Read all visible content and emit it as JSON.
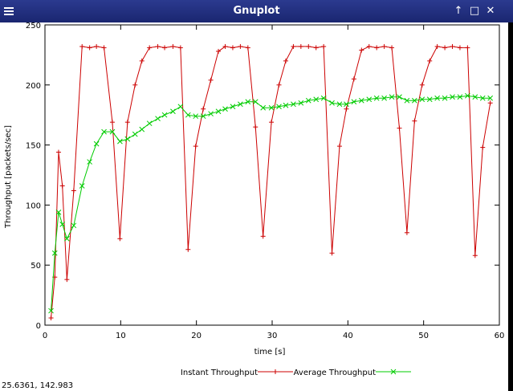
{
  "window": {
    "title": "Gnuplot",
    "controls": [
      "↑",
      "□",
      "✕"
    ]
  },
  "status_text": "25.6361,  142.983",
  "chart_data": {
    "type": "line",
    "xlabel": "time [s]",
    "ylabel": "Throughput [packets/sec]",
    "xlim": [
      0,
      60
    ],
    "ylim": [
      0,
      250
    ],
    "xticks": [
      0,
      10,
      20,
      30,
      40,
      50,
      60
    ],
    "yticks": [
      0,
      50,
      100,
      150,
      200,
      250
    ],
    "legend_position": "bottom",
    "grid": false,
    "series": [
      {
        "name": "Instant Throughput",
        "color": "#cc0000",
        "marker": "plus",
        "points": [
          [
            0.8,
            6
          ],
          [
            1.3,
            40
          ],
          [
            1.8,
            144
          ],
          [
            2.3,
            116
          ],
          [
            2.9,
            38
          ],
          [
            3.8,
            112
          ],
          [
            4.9,
            232
          ],
          [
            5.9,
            231
          ],
          [
            6.8,
            232
          ],
          [
            7.8,
            231
          ],
          [
            8.9,
            169
          ],
          [
            9.9,
            72
          ],
          [
            10.9,
            169
          ],
          [
            11.9,
            200
          ],
          [
            12.8,
            220
          ],
          [
            13.8,
            231
          ],
          [
            14.9,
            232
          ],
          [
            15.8,
            231
          ],
          [
            16.9,
            232
          ],
          [
            17.9,
            231
          ],
          [
            18.9,
            63
          ],
          [
            19.9,
            149
          ],
          [
            20.9,
            180
          ],
          [
            21.9,
            204
          ],
          [
            22.9,
            228
          ],
          [
            23.8,
            232
          ],
          [
            24.8,
            231
          ],
          [
            25.8,
            232
          ],
          [
            26.8,
            231
          ],
          [
            27.8,
            165
          ],
          [
            28.8,
            74
          ],
          [
            29.9,
            169
          ],
          [
            30.9,
            200
          ],
          [
            31.8,
            220
          ],
          [
            32.8,
            232
          ],
          [
            33.8,
            232
          ],
          [
            34.8,
            232
          ],
          [
            35.8,
            231
          ],
          [
            36.8,
            232
          ],
          [
            37.9,
            60
          ],
          [
            38.9,
            149
          ],
          [
            39.8,
            180
          ],
          [
            40.8,
            205
          ],
          [
            41.8,
            229
          ],
          [
            42.8,
            232
          ],
          [
            43.8,
            231
          ],
          [
            44.8,
            232
          ],
          [
            45.8,
            231
          ],
          [
            46.8,
            164
          ],
          [
            47.8,
            77
          ],
          [
            48.8,
            170
          ],
          [
            49.8,
            200
          ],
          [
            50.8,
            220
          ],
          [
            51.8,
            232
          ],
          [
            52.8,
            231
          ],
          [
            53.8,
            232
          ],
          [
            54.8,
            231
          ],
          [
            55.8,
            231
          ],
          [
            56.8,
            58
          ],
          [
            57.8,
            148
          ],
          [
            58.8,
            185
          ]
        ]
      },
      {
        "name": "Average Throughput",
        "color": "#00cc00",
        "marker": "x",
        "points": [
          [
            0.8,
            12
          ],
          [
            1.3,
            60
          ],
          [
            1.8,
            94
          ],
          [
            2.3,
            84
          ],
          [
            2.9,
            72
          ],
          [
            3.8,
            83
          ],
          [
            4.9,
            116
          ],
          [
            5.9,
            136
          ],
          [
            6.8,
            151
          ],
          [
            7.8,
            161
          ],
          [
            8.9,
            161
          ],
          [
            9.9,
            153
          ],
          [
            10.9,
            155
          ],
          [
            11.9,
            159
          ],
          [
            12.8,
            163
          ],
          [
            13.8,
            168
          ],
          [
            14.9,
            172
          ],
          [
            15.8,
            175
          ],
          [
            16.9,
            178
          ],
          [
            17.9,
            182
          ],
          [
            18.9,
            175
          ],
          [
            19.9,
            174
          ],
          [
            20.9,
            174
          ],
          [
            21.9,
            176
          ],
          [
            22.9,
            178
          ],
          [
            23.8,
            180
          ],
          [
            24.8,
            182
          ],
          [
            25.8,
            184
          ],
          [
            26.8,
            186
          ],
          [
            27.8,
            186
          ],
          [
            28.8,
            181
          ],
          [
            29.9,
            181
          ],
          [
            30.9,
            182
          ],
          [
            31.8,
            183
          ],
          [
            32.8,
            184
          ],
          [
            33.8,
            185
          ],
          [
            34.8,
            187
          ],
          [
            35.8,
            188
          ],
          [
            36.8,
            189
          ],
          [
            37.9,
            185
          ],
          [
            38.9,
            184
          ],
          [
            39.8,
            184
          ],
          [
            40.8,
            186
          ],
          [
            41.8,
            187
          ],
          [
            42.8,
            188
          ],
          [
            43.8,
            189
          ],
          [
            44.8,
            189
          ],
          [
            45.8,
            190
          ],
          [
            46.8,
            190
          ],
          [
            47.8,
            187
          ],
          [
            48.8,
            187
          ],
          [
            49.8,
            188
          ],
          [
            50.8,
            188
          ],
          [
            51.8,
            189
          ],
          [
            52.8,
            189
          ],
          [
            53.8,
            190
          ],
          [
            54.8,
            190
          ],
          [
            55.8,
            191
          ],
          [
            56.8,
            190
          ],
          [
            57.8,
            189
          ],
          [
            58.8,
            189
          ]
        ]
      }
    ]
  }
}
